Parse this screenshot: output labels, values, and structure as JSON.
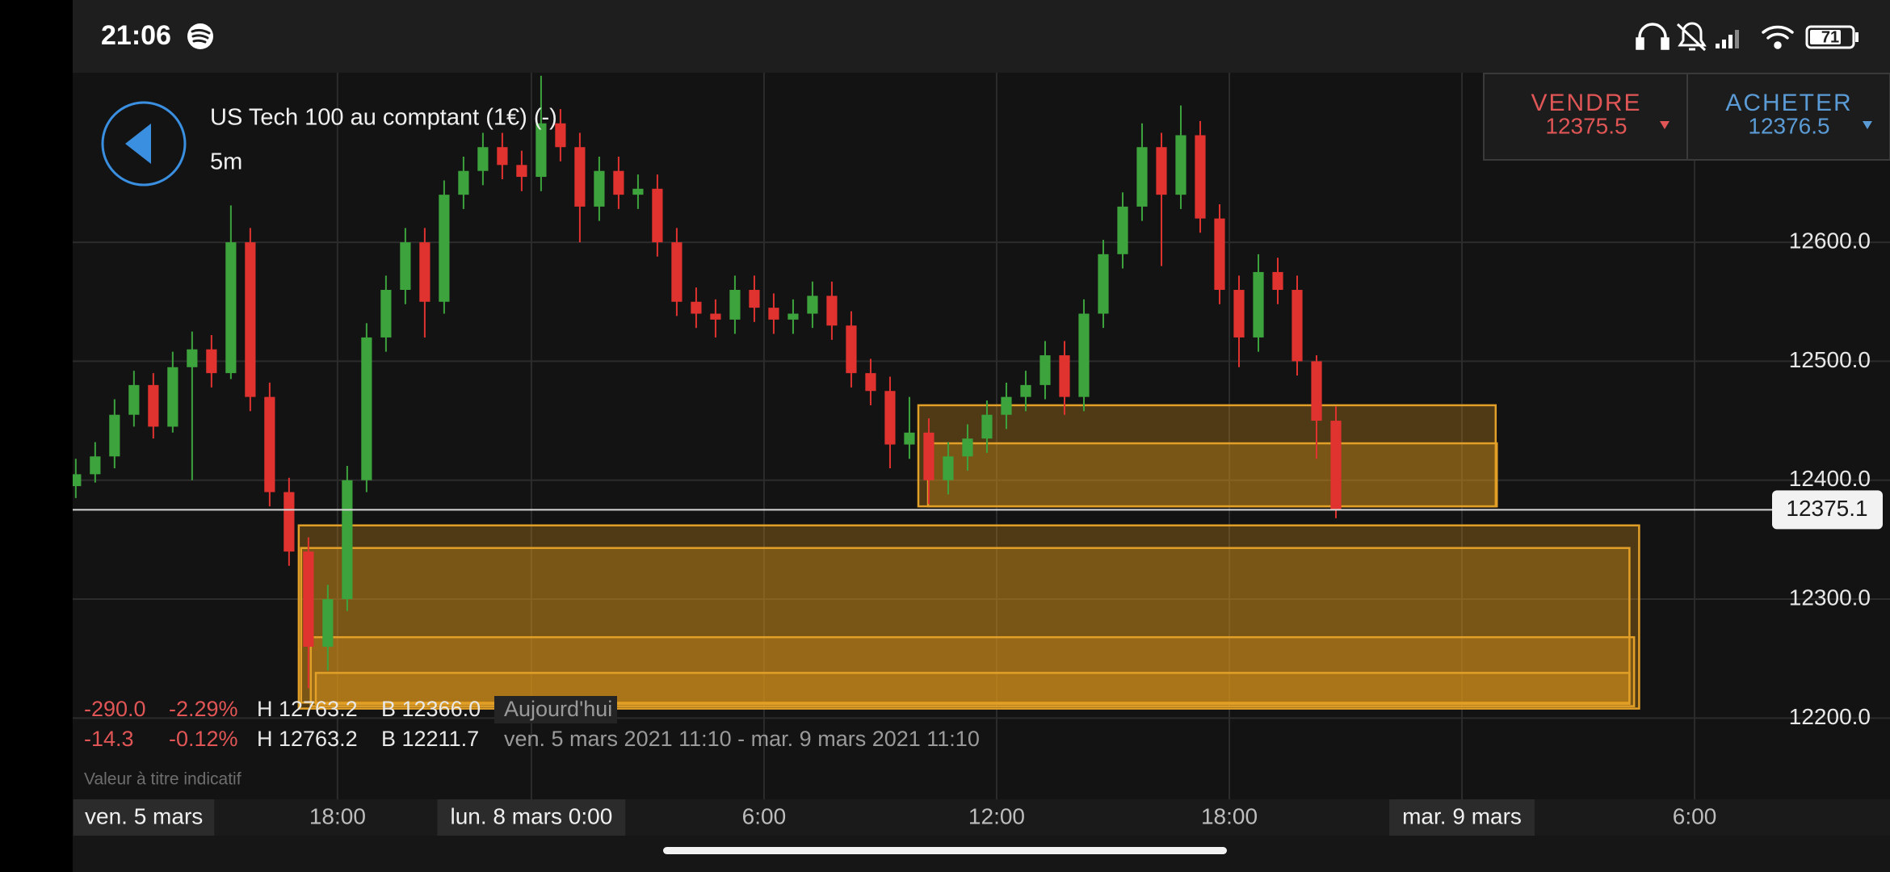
{
  "status_bar": {
    "time": "21:06",
    "battery": "71"
  },
  "instrument": {
    "title": "US Tech 100 au comptant (1€) (-)",
    "timeframe": "5m"
  },
  "quote": {
    "sell": {
      "label": "VENDRE",
      "price": "12375.5"
    },
    "buy": {
      "label": "ACHETER",
      "price": "12376.5"
    }
  },
  "stats": {
    "rows": [
      [
        "-290.0",
        "-2.29%",
        "H 12763.2",
        "B 12366.0",
        "Aujourd'hui"
      ],
      [
        "-14.3",
        "-0.12%",
        "H 12763.2",
        "B 12211.7",
        "ven. 5 mars 2021 11:10 - mar. 9 mars 2021 11:10"
      ]
    ],
    "note": "Valeur à titre indicatif"
  },
  "chart_data": {
    "type": "candlestick",
    "up_color": "#3da33d",
    "down_color": "#e0322f",
    "grid": true,
    "ylim": [
      12131.7,
      12742.6
    ],
    "yticks": [
      {
        "value": 12200,
        "label": "12200.0"
      },
      {
        "value": 12300,
        "label": "12300.0"
      },
      {
        "value": 12400,
        "label": "12400.0"
      },
      {
        "value": 12500,
        "label": "12500.0"
      },
      {
        "value": 12600,
        "label": "12600.0"
      }
    ],
    "xlim": [
      -11.83,
      35.04
    ],
    "x_date_label": "ven. 5 mars",
    "xticks": [
      {
        "value": -5,
        "label": "18:00"
      },
      {
        "value": 0,
        "label": "lun. 8 mars 0:00",
        "boxed": true
      },
      {
        "value": 6,
        "label": "6:00"
      },
      {
        "value": 12,
        "label": "12:00"
      },
      {
        "value": 18,
        "label": "18:00"
      },
      {
        "value": 24,
        "label": "mar. 9 mars",
        "boxed": true
      },
      {
        "value": 30,
        "label": "6:00"
      }
    ],
    "last_price": 12375.1,
    "zones": [
      {
        "x": [
          9.98,
          24.87
        ],
        "y": [
          12378,
          12463
        ]
      },
      {
        "x": [
          10.23,
          24.9
        ],
        "y": [
          12378,
          12431
        ]
      },
      {
        "x": [
          -6.0,
          28.57
        ],
        "y": [
          12208,
          12362
        ]
      },
      {
        "x": [
          -5.94,
          28.32
        ],
        "y": [
          12213,
          12343
        ]
      },
      {
        "x": [
          -5.69,
          28.44
        ],
        "y": [
          12210,
          12268
        ]
      },
      {
        "x": [
          -5.56,
          28.32
        ],
        "y": [
          12212,
          12238
        ]
      }
    ],
    "candles": [
      [
        -11.75,
        12395,
        12418,
        12385,
        12405
      ],
      [
        -11.25,
        12405,
        12432,
        12398,
        12420
      ],
      [
        -10.75,
        12420,
        12468,
        12410,
        12455
      ],
      [
        -10.25,
        12455,
        12492,
        12445,
        12480
      ],
      [
        -9.75,
        12480,
        12490,
        12435,
        12445
      ],
      [
        -9.25,
        12445,
        12508,
        12440,
        12495
      ],
      [
        -8.75,
        12495,
        12525,
        12400,
        12510
      ],
      [
        -8.25,
        12510,
        12522,
        12478,
        12490
      ],
      [
        -7.75,
        12490,
        12631,
        12485,
        12600
      ],
      [
        -7.25,
        12600,
        12612,
        12458,
        12470
      ],
      [
        -6.75,
        12470,
        12482,
        12378,
        12390
      ],
      [
        -6.25,
        12390,
        12402,
        12328,
        12340
      ],
      [
        -5.75,
        12340,
        12352,
        12225,
        12260
      ],
      [
        -5.25,
        12260,
        12312,
        12240,
        12300
      ],
      [
        -4.75,
        12300,
        12412,
        12290,
        12400
      ],
      [
        -4.25,
        12400,
        12532,
        12390,
        12520
      ],
      [
        -3.75,
        12520,
        12572,
        12508,
        12560
      ],
      [
        -3.25,
        12560,
        12612,
        12548,
        12600
      ],
      [
        -2.75,
        12600,
        12612,
        12520,
        12550
      ],
      [
        -2.25,
        12550,
        12652,
        12540,
        12640
      ],
      [
        -1.75,
        12640,
        12672,
        12628,
        12660
      ],
      [
        -1.25,
        12660,
        12692,
        12648,
        12680
      ],
      [
        -0.75,
        12680,
        12692,
        12653,
        12665
      ],
      [
        -0.25,
        12665,
        12677,
        12643,
        12655
      ],
      [
        0.25,
        12655,
        12740,
        12643,
        12700
      ],
      [
        0.75,
        12700,
        12712,
        12668,
        12680
      ],
      [
        1.25,
        12680,
        12692,
        12600,
        12630
      ],
      [
        1.75,
        12630,
        12672,
        12618,
        12660
      ],
      [
        2.25,
        12660,
        12672,
        12628,
        12640
      ],
      [
        2.75,
        12640,
        12657,
        12628,
        12645
      ],
      [
        3.25,
        12645,
        12657,
        12588,
        12600
      ],
      [
        3.75,
        12600,
        12612,
        12538,
        12550
      ],
      [
        4.25,
        12550,
        12562,
        12528,
        12540
      ],
      [
        4.75,
        12540,
        12552,
        12520,
        12535
      ],
      [
        5.25,
        12535,
        12572,
        12523,
        12560
      ],
      [
        5.75,
        12560,
        12572,
        12533,
        12545
      ],
      [
        6.25,
        12545,
        12557,
        12523,
        12535
      ],
      [
        6.75,
        12535,
        12552,
        12523,
        12540
      ],
      [
        7.25,
        12540,
        12567,
        12528,
        12555
      ],
      [
        7.75,
        12555,
        12567,
        12518,
        12530
      ],
      [
        8.25,
        12530,
        12542,
        12478,
        12490
      ],
      [
        8.75,
        12490,
        12502,
        12463,
        12475
      ],
      [
        9.25,
        12475,
        12487,
        12410,
        12430
      ],
      [
        9.75,
        12430,
        12470,
        12418,
        12440
      ],
      [
        10.25,
        12440,
        12452,
        12380,
        12400
      ],
      [
        10.75,
        12400,
        12432,
        12388,
        12420
      ],
      [
        11.25,
        12420,
        12447,
        12408,
        12435
      ],
      [
        11.75,
        12435,
        12467,
        12423,
        12455
      ],
      [
        12.25,
        12455,
        12482,
        12443,
        12470
      ],
      [
        12.75,
        12470,
        12492,
        12458,
        12480
      ],
      [
        13.25,
        12480,
        12517,
        12468,
        12505
      ],
      [
        13.75,
        12505,
        12517,
        12455,
        12470
      ],
      [
        14.25,
        12470,
        12552,
        12458,
        12540
      ],
      [
        14.75,
        12540,
        12602,
        12528,
        12590
      ],
      [
        15.25,
        12590,
        12642,
        12578,
        12630
      ],
      [
        15.75,
        12630,
        12700,
        12618,
        12680
      ],
      [
        16.25,
        12680,
        12692,
        12580,
        12640
      ],
      [
        16.75,
        12640,
        12715,
        12628,
        12690
      ],
      [
        17.25,
        12690,
        12702,
        12608,
        12620
      ],
      [
        17.75,
        12620,
        12632,
        12548,
        12560
      ],
      [
        18.25,
        12560,
        12572,
        12495,
        12520
      ],
      [
        18.75,
        12520,
        12590,
        12508,
        12575
      ],
      [
        19.25,
        12575,
        12587,
        12548,
        12560
      ],
      [
        19.75,
        12560,
        12572,
        12488,
        12500
      ],
      [
        20.25,
        12500,
        12505,
        12418,
        12450
      ],
      [
        20.75,
        12450,
        12462,
        12368,
        12375
      ]
    ]
  }
}
